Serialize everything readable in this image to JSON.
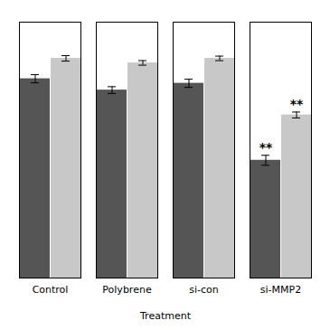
{
  "chart_data": {
    "type": "bar",
    "xlabel": "Treatment",
    "categories": [
      "Control",
      "Polybrene",
      "si-con",
      "si-MMP2"
    ],
    "series": [
      {
        "color": "#555555",
        "values": [
          0.88,
          0.83,
          0.86,
          0.52
        ],
        "errors": [
          0.018,
          0.015,
          0.018,
          0.022
        ]
      },
      {
        "color": "#c8c8c8",
        "values": [
          0.97,
          0.95,
          0.97,
          0.72
        ],
        "errors": [
          0.012,
          0.01,
          0.01,
          0.013
        ]
      }
    ],
    "ylim": [
      0,
      1.13
    ],
    "yticks": [],
    "tick_labels": "x",
    "annotations": [
      {
        "text": "**",
        "category": "si-MMP2"
      }
    ]
  }
}
